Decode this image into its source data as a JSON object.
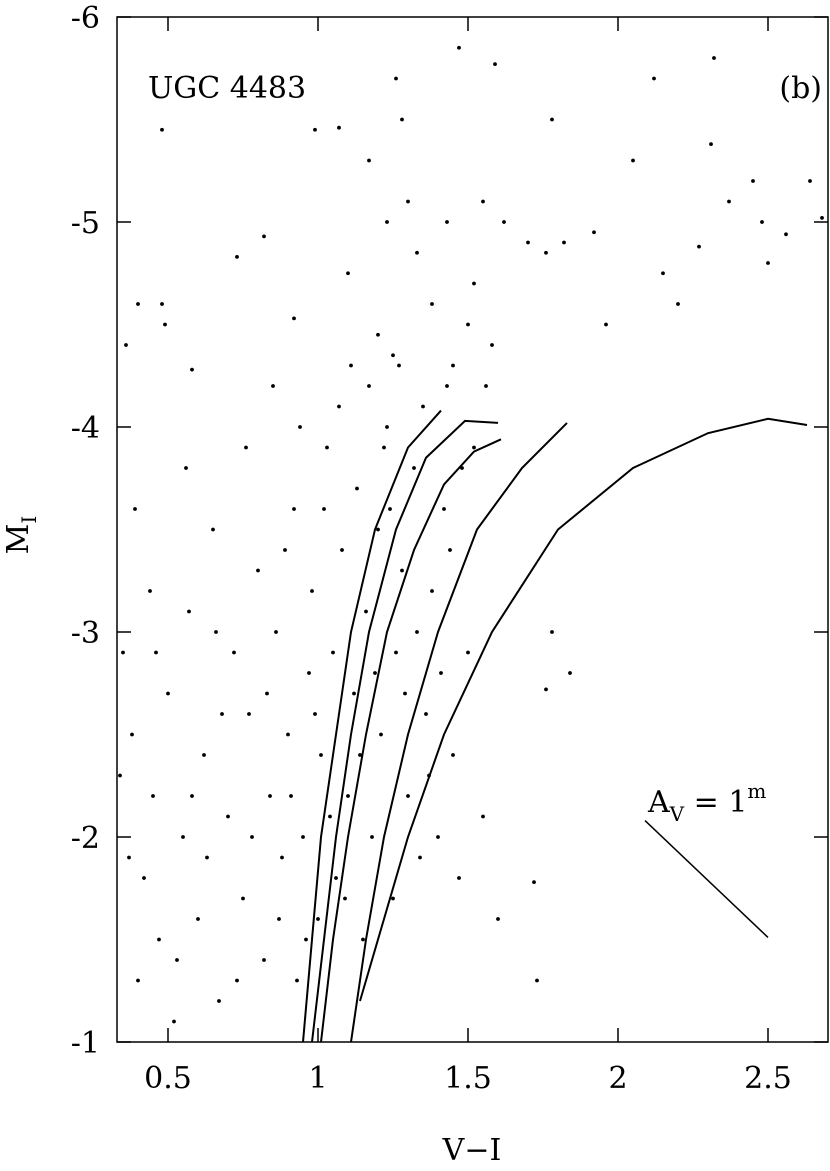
{
  "chart_data": {
    "type": "scatter",
    "label_text": "UGC 4483",
    "panel_text": "(b)",
    "xlabel": "V−I",
    "ylabel": "M",
    "ylabel_sub": "I",
    "xlim": [
      0.33,
      2.7
    ],
    "ylim": [
      -1,
      -6
    ],
    "xticks": [
      0.5,
      1,
      1.5,
      2,
      2.5
    ],
    "yticks": [
      -1,
      -2,
      -3,
      -4,
      -5,
      -6
    ],
    "color": "#000000",
    "x": [
      0.48,
      0.48,
      0.49,
      0.73,
      0.82,
      0.92,
      0.99,
      1.07,
      1.11,
      1.17,
      1.23,
      1.26,
      1.28,
      1.3,
      1.38,
      1.43,
      1.47,
      1.52,
      1.55,
      1.59,
      1.62,
      1.7,
      1.76,
      1.78,
      1.82,
      1.92,
      1.96,
      2.05,
      2.12,
      2.15,
      2.2,
      2.27,
      2.31,
      2.32,
      2.37,
      2.45,
      2.48,
      2.5,
      2.56,
      2.64,
      2.68,
      1.1,
      1.2,
      1.25,
      1.33,
      0.58,
      0.36,
      0.4,
      1.5,
      1.45,
      0.35,
      0.38,
      0.4,
      0.42,
      0.45,
      0.47,
      0.5,
      0.52,
      0.55,
      0.57,
      0.6,
      0.62,
      0.65,
      0.67,
      0.7,
      0.72,
      0.75,
      0.77,
      0.8,
      0.82,
      0.84,
      0.86,
      0.88,
      0.9,
      0.92,
      0.93,
      0.95,
      0.97,
      0.98,
      1.0,
      1.01,
      1.03,
      1.05,
      1.06,
      1.08,
      1.1,
      1.12,
      1.13,
      1.15,
      1.16,
      1.18,
      1.2,
      1.21,
      1.23,
      1.25,
      1.26,
      1.28,
      1.3,
      1.32,
      1.34,
      1.36,
      1.38,
      1.4,
      1.42,
      1.45,
      1.47,
      1.5,
      1.55,
      1.6,
      1.72,
      1.73,
      1.78,
      1.84,
      1.76,
      0.37,
      0.44,
      0.53,
      0.58,
      0.63,
      0.68,
      0.73,
      0.78,
      0.83,
      0.87,
      0.91,
      0.96,
      0.99,
      1.04,
      1.09,
      1.14,
      1.19,
      1.24,
      1.29,
      1.33,
      1.37,
      1.41,
      1.44,
      1.48,
      1.52,
      1.56,
      1.58,
      0.34,
      0.39,
      0.46,
      0.56,
      0.66,
      0.76,
      0.85,
      0.89,
      0.94,
      1.02,
      1.07,
      1.17,
      1.22,
      1.27,
      1.35,
      1.43
    ],
    "values": [
      -5.45,
      -4.6,
      -4.5,
      -4.83,
      -4.93,
      -4.53,
      -5.45,
      -5.46,
      -4.3,
      -5.3,
      -5.0,
      -5.7,
      -5.5,
      -5.1,
      -4.6,
      -5.0,
      -5.85,
      -4.7,
      -5.1,
      -5.77,
      -5.0,
      -4.9,
      -4.85,
      -5.5,
      -4.9,
      -4.95,
      -4.5,
      -5.3,
      -5.7,
      -4.75,
      -4.6,
      -4.88,
      -5.38,
      -5.8,
      -5.1,
      -5.2,
      -5.0,
      -4.8,
      -4.94,
      -5.2,
      -5.02,
      -4.75,
      -4.45,
      -4.35,
      -4.85,
      -4.28,
      -4.4,
      -4.6,
      -4.5,
      -4.3,
      -2.9,
      -2.5,
      -1.3,
      -1.8,
      -2.2,
      -1.5,
      -2.7,
      -1.1,
      -2.0,
      -3.1,
      -1.6,
      -2.4,
      -3.5,
      -1.2,
      -2.1,
      -2.9,
      -1.7,
      -2.6,
      -3.3,
      -1.4,
      -2.2,
      -3.0,
      -1.9,
      -2.5,
      -3.6,
      -1.3,
      -2.0,
      -2.8,
      -3.2,
      -1.6,
      -2.4,
      -3.9,
      -2.9,
      -1.8,
      -3.4,
      -2.2,
      -2.7,
      -3.7,
      -1.5,
      -3.1,
      -2.0,
      -3.5,
      -2.5,
      -4.0,
      -1.7,
      -2.9,
      -3.3,
      -2.2,
      -3.8,
      -1.9,
      -2.6,
      -3.2,
      -2.0,
      -3.6,
      -2.4,
      -1.8,
      -2.9,
      -2.1,
      -1.6,
      -1.78,
      -1.3,
      -3.0,
      -2.8,
      -2.72,
      -1.9,
      -3.2,
      -1.4,
      -2.2,
      -1.9,
      -2.6,
      -1.3,
      -2.0,
      -2.7,
      -1.6,
      -2.2,
      -1.5,
      -2.6,
      -2.1,
      -1.7,
      -2.4,
      -2.8,
      -3.6,
      -2.7,
      -3.0,
      -2.3,
      -2.8,
      -3.4,
      -3.8,
      -3.9,
      -4.2,
      -4.4,
      -2.3,
      -3.6,
      -2.9,
      -3.8,
      -3.0,
      -3.9,
      -4.2,
      -3.4,
      -4.0,
      -3.6,
      -4.1,
      -4.2,
      -3.9,
      -4.3,
      -4.1,
      -4.2
    ],
    "curves": [
      {
        "x": [
          0.95,
          0.98,
          1.01,
          1.06,
          1.11,
          1.19,
          1.3,
          1.41
        ],
        "values": [
          -1,
          -1.5,
          -2,
          -2.5,
          -3,
          -3.5,
          -3.9,
          -4.08
        ]
      },
      {
        "x": [
          0.98,
          1.02,
          1.06,
          1.11,
          1.17,
          1.26,
          1.36,
          1.49,
          1.6
        ],
        "values": [
          -1,
          -1.5,
          -2,
          -2.5,
          -3,
          -3.5,
          -3.85,
          -4.03,
          -4.02
        ]
      },
      {
        "x": [
          1.01,
          1.05,
          1.1,
          1.16,
          1.23,
          1.32,
          1.42,
          1.52,
          1.61
        ],
        "values": [
          -1,
          -1.5,
          -2,
          -2.5,
          -3,
          -3.4,
          -3.72,
          -3.88,
          -3.94
        ]
      },
      {
        "x": [
          1.11,
          1.16,
          1.22,
          1.3,
          1.4,
          1.53,
          1.68,
          1.83
        ],
        "values": [
          -1,
          -1.5,
          -2,
          -2.5,
          -3,
          -3.5,
          -3.8,
          -4.02
        ]
      },
      {
        "x": [
          1.14,
          1.22,
          1.3,
          1.42,
          1.58,
          1.8,
          2.05,
          2.3,
          2.5,
          2.63
        ],
        "values": [
          -1.2,
          -1.6,
          -2,
          -2.5,
          -3,
          -3.5,
          -3.8,
          -3.97,
          -4.04,
          -4.01
        ]
      }
    ],
    "reddening_vector": {
      "x": [
        2.09,
        2.5
      ],
      "values": [
        -2.08,
        -1.51
      ],
      "label": "A",
      "label_sub": "V",
      "label_mid": " = 1",
      "label_sup": "m"
    }
  }
}
